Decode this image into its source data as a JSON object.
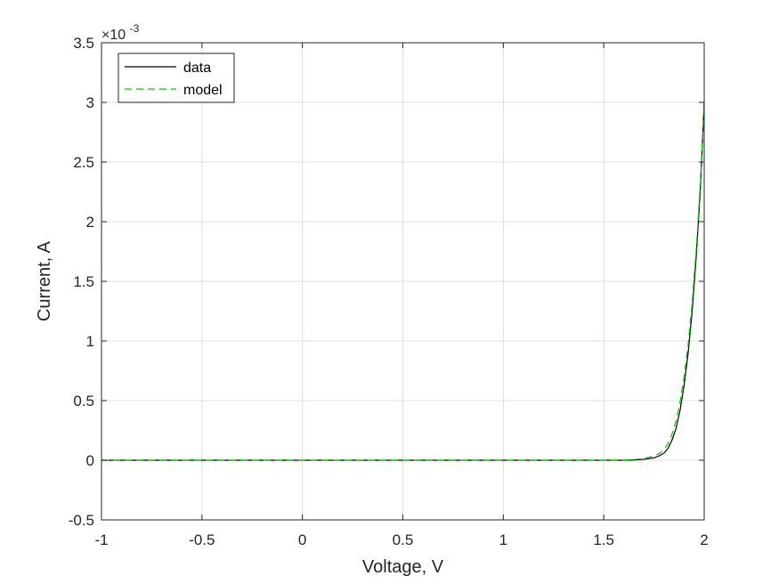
{
  "chart_data": {
    "type": "line",
    "xlabel": "Voltage, V",
    "ylabel": "Current, A",
    "xlim": [
      -1,
      2
    ],
    "ylim": [
      -0.5,
      3.5
    ],
    "y_exponent_label": {
      "base": "×10",
      "power": "-3"
    },
    "x_ticks": [
      -1,
      -0.5,
      0,
      0.5,
      1,
      1.5,
      2
    ],
    "x_tick_labels": [
      "-1",
      "-0.5",
      "0",
      "0.5",
      "1",
      "1.5",
      "2"
    ],
    "y_ticks": [
      -0.5,
      0,
      0.5,
      1,
      1.5,
      2,
      2.5,
      3,
      3.5
    ],
    "y_tick_labels": [
      "-0.5",
      "0",
      "0.5",
      "1",
      "1.5",
      "2",
      "2.5",
      "3",
      "3.5"
    ],
    "grid": true,
    "legend_position": "top-left",
    "series": [
      {
        "name": "data",
        "color": "#000000",
        "style": "solid",
        "x": [
          -1,
          -0.5,
          0,
          0.5,
          1,
          1.5,
          1.6,
          1.65,
          1.7,
          1.75,
          1.78,
          1.8,
          1.82,
          1.84,
          1.86,
          1.88,
          1.9,
          1.92,
          1.94,
          1.96,
          1.98,
          2.0
        ],
        "y": [
          0,
          0,
          0,
          0,
          0,
          0,
          0.0,
          0.002,
          0.008,
          0.02,
          0.04,
          0.06,
          0.1,
          0.17,
          0.27,
          0.42,
          0.63,
          0.9,
          1.25,
          1.7,
          2.25,
          3.0
        ]
      },
      {
        "name": "model",
        "color": "#00cc00",
        "style": "dashed",
        "x": [
          -1,
          -0.5,
          0,
          0.5,
          1,
          1.5,
          1.6,
          1.65,
          1.7,
          1.75,
          1.78,
          1.8,
          1.82,
          1.84,
          1.86,
          1.88,
          1.9,
          1.92,
          1.94,
          1.96,
          1.98,
          2.0
        ],
        "y": [
          0,
          0,
          0,
          0,
          0,
          0,
          0.002,
          0.006,
          0.015,
          0.035,
          0.06,
          0.09,
          0.14,
          0.22,
          0.33,
          0.49,
          0.7,
          0.97,
          1.32,
          1.76,
          2.3,
          3.0
        ]
      }
    ]
  }
}
